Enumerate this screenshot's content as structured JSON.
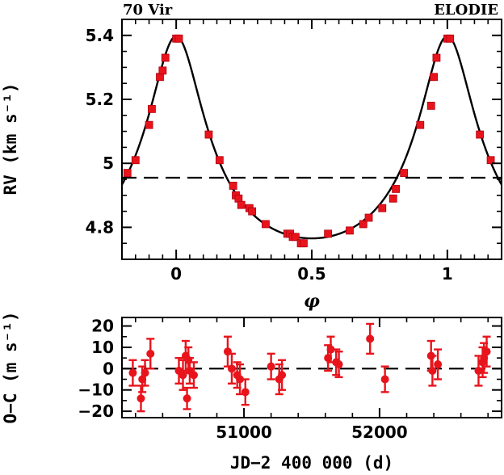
{
  "chart_data": [
    {
      "type": "scatter",
      "annotations": {
        "left": "70 Vir",
        "right": "ELODIE"
      },
      "xlabel": "φ",
      "ylabel": "RV (km s⁻¹)",
      "xlim": [
        -0.2,
        1.2
      ],
      "ylim": [
        4.7,
        5.45
      ],
      "xticks": [
        0,
        0.5,
        1
      ],
      "xtick_labels": [
        "0",
        "0.5",
        "1"
      ],
      "yticks": [
        4.8,
        5,
        5.2,
        5.4
      ],
      "ytick_labels": [
        "4.8",
        "5",
        "5.2",
        "5.4"
      ],
      "systemic_velocity": 4.955,
      "series": [
        {
          "x": [
            -0.18,
            -0.15,
            -0.1,
            -0.09,
            -0.06,
            -0.05,
            -0.04,
            0.0,
            0.01,
            0.12,
            0.16,
            0.21,
            0.22,
            0.23,
            0.24,
            0.27,
            0.28,
            0.33,
            0.41,
            0.42,
            0.43,
            0.44,
            0.46,
            0.47,
            0.56,
            0.64,
            0.69,
            0.71,
            0.76,
            0.8,
            0.81,
            0.84,
            0.9,
            0.94,
            0.95,
            0.96,
            1.0,
            1.01,
            1.12,
            1.16
          ],
          "y": [
            4.97,
            5.01,
            5.12,
            5.17,
            5.27,
            5.29,
            5.33,
            5.39,
            5.39,
            5.09,
            5.01,
            4.93,
            4.9,
            4.89,
            4.87,
            4.86,
            4.85,
            4.81,
            4.78,
            4.78,
            4.77,
            4.77,
            4.75,
            4.75,
            4.78,
            4.79,
            4.81,
            4.83,
            4.86,
            4.89,
            4.92,
            4.97,
            5.12,
            5.18,
            5.27,
            5.33,
            5.39,
            5.39,
            5.09,
            5.01
          ]
        }
      ]
    },
    {
      "type": "scatter",
      "xlabel": "JD−2 400 000 (d)",
      "ylabel": "O−C (m s⁻¹)",
      "xlim": [
        50100,
        52900
      ],
      "ylim": [
        -23,
        24
      ],
      "xticks": [
        51000,
        52000
      ],
      "xtick_labels": [
        "51000",
        "52000"
      ],
      "yticks": [
        -20,
        -10,
        0,
        10,
        20
      ],
      "ytick_labels": [
        "−20",
        "−10",
        "0",
        "10",
        "20"
      ],
      "series": [
        {
          "x": [
            50180,
            50240,
            50250,
            50270,
            50310,
            50520,
            50550,
            50570,
            50580,
            50590,
            50600,
            50630,
            50880,
            50910,
            50950,
            50970,
            51010,
            51200,
            51260,
            51280,
            51620,
            51640,
            51680,
            51700,
            51930,
            52040,
            52380,
            52390,
            52430,
            52730,
            52760,
            52770,
            52790
          ],
          "y": [
            -2,
            -14,
            -5,
            -2,
            7,
            -1,
            -3,
            6,
            -14,
            4,
            -1,
            -3,
            8,
            0,
            -3,
            -5,
            -11,
            1,
            -5,
            -3,
            5,
            9,
            3,
            2,
            14,
            -5,
            6,
            -1,
            2,
            -1,
            3,
            5,
            8
          ],
          "err": [
            6,
            6,
            6,
            6,
            7,
            6,
            7,
            7,
            5,
            6,
            6,
            6,
            7,
            7,
            6,
            7,
            6,
            6,
            7,
            7,
            6,
            6,
            6,
            6,
            7,
            6,
            7,
            7,
            7,
            7,
            7,
            7,
            7
          ]
        }
      ]
    }
  ]
}
